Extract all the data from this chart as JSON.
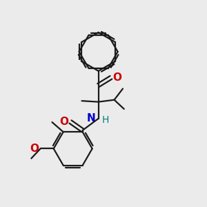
{
  "background_color": "#ebebeb",
  "bond_color": "#1a1a1a",
  "atom_colors": {
    "O": "#cc0000",
    "N": "#0000cc",
    "H_on_N": "#008080"
  },
  "font_size_atoms": 10,
  "fig_size": [
    3.0,
    3.0
  ],
  "dpi": 100,
  "lw": 1.6,
  "ring_r": 0.95
}
